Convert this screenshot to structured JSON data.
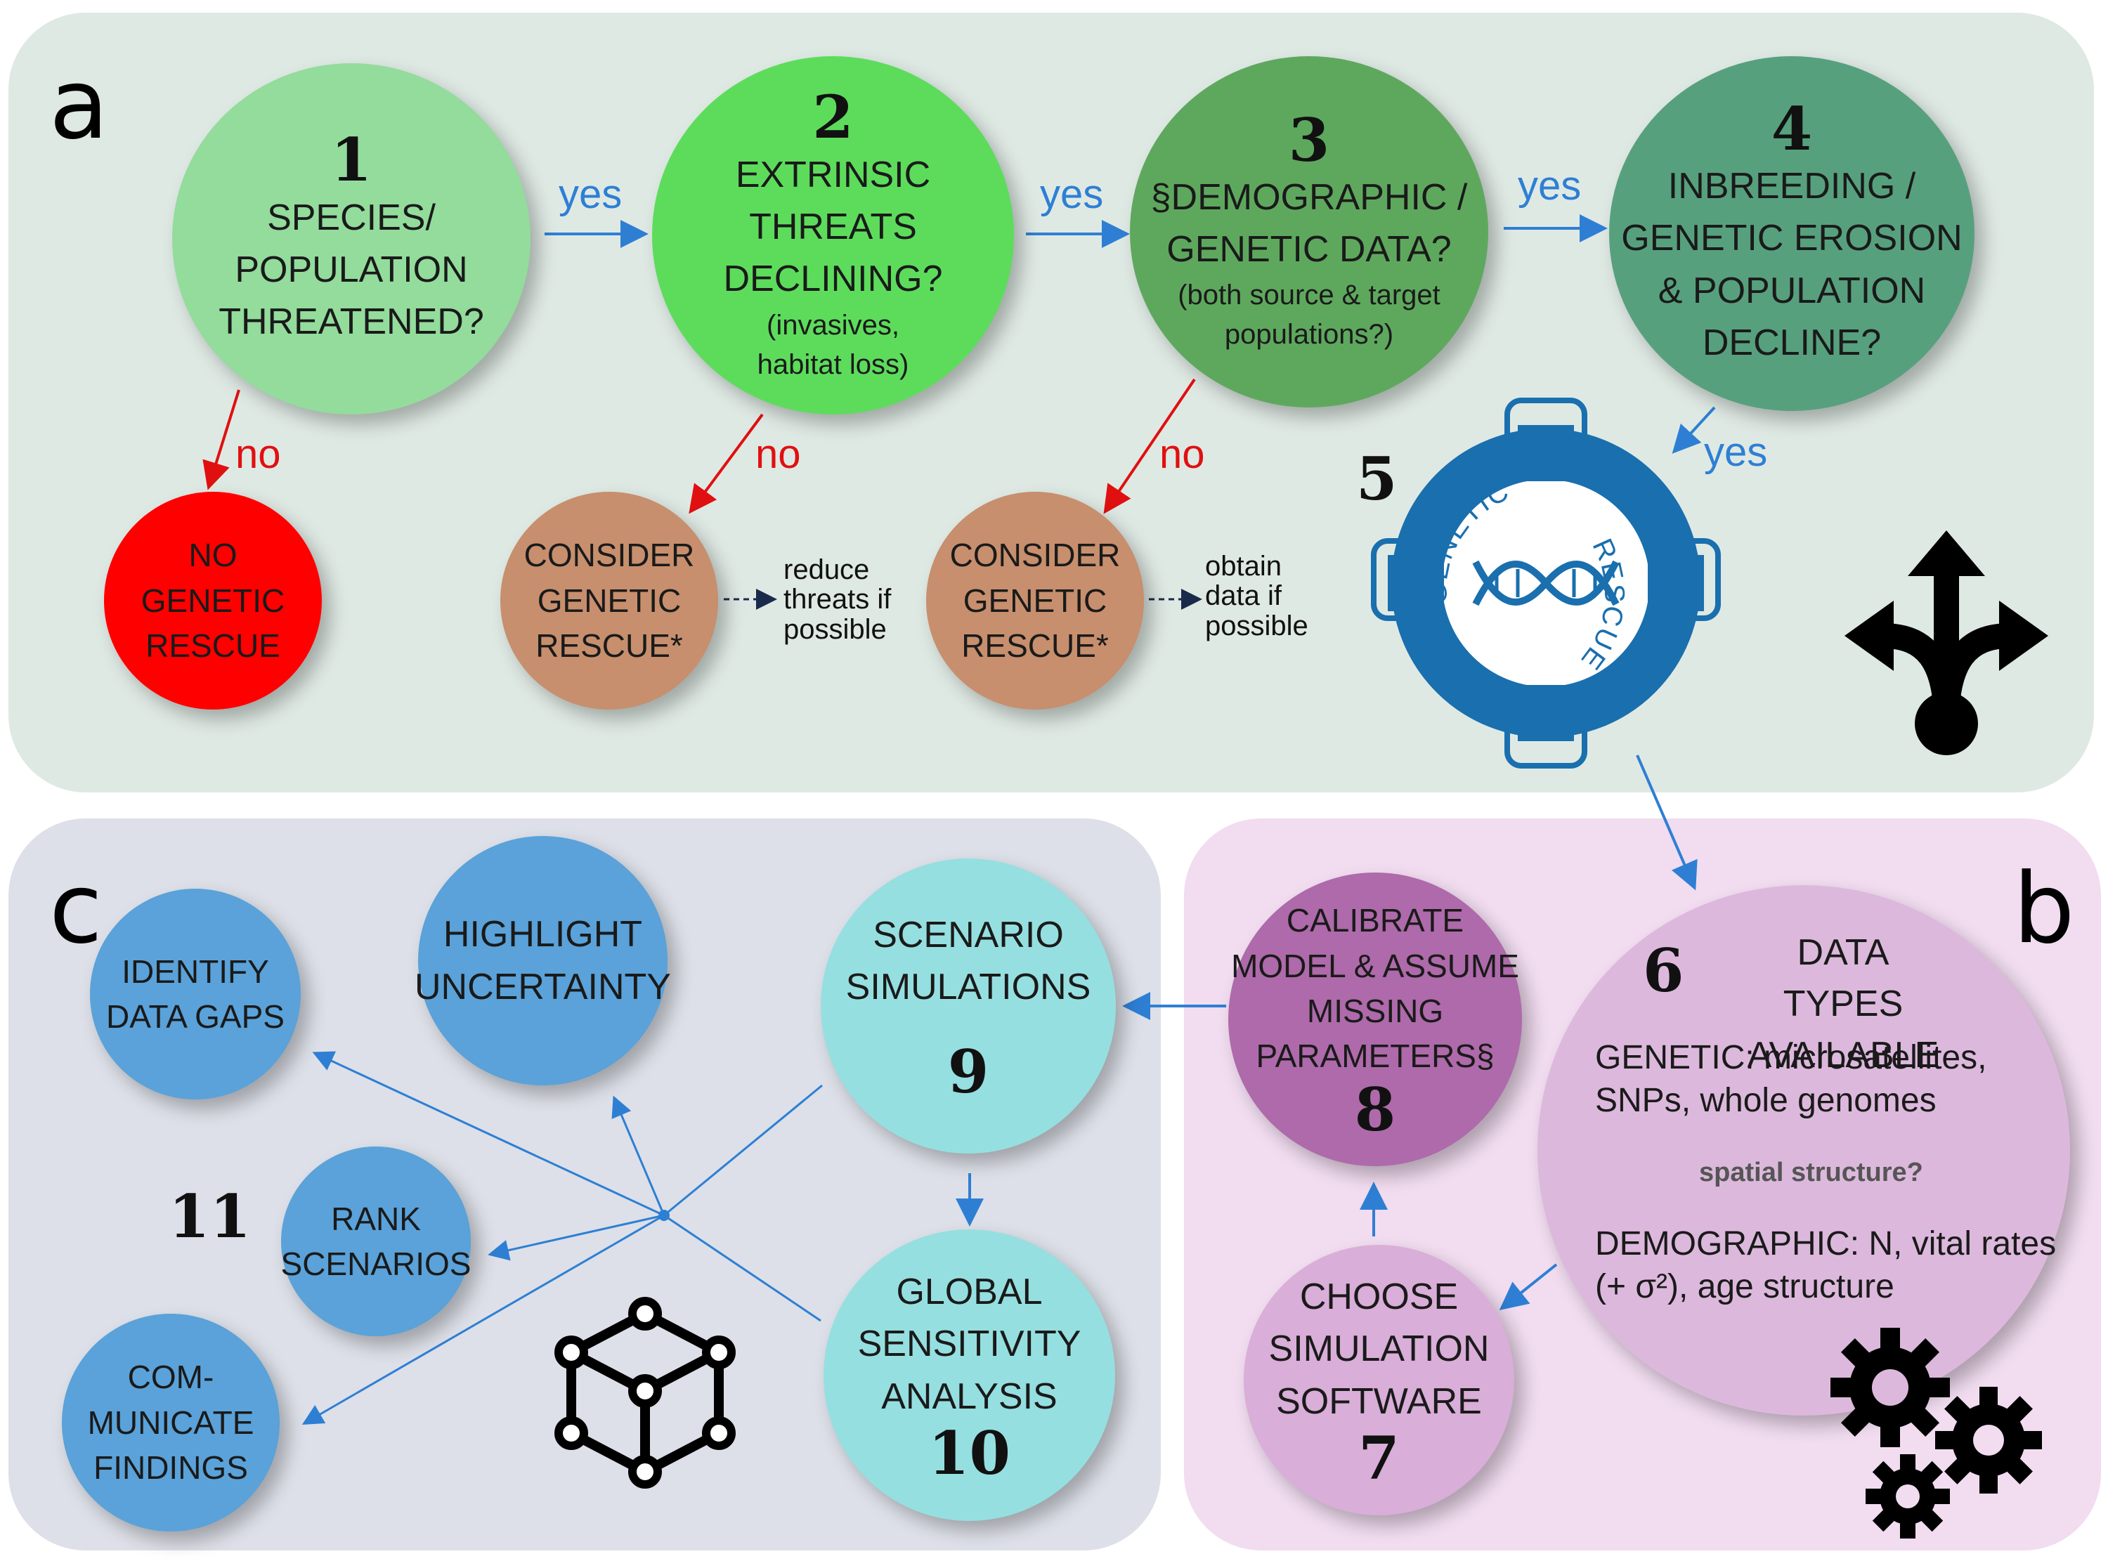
{
  "panels": {
    "a": {
      "letter": "a"
    },
    "b": {
      "letter": "b"
    },
    "c": {
      "letter": "c"
    }
  },
  "steps": {
    "s1": {
      "number": "1",
      "l1": "SPECIES/",
      "l2": "POPULATION",
      "l3": "THREATENED?"
    },
    "s2": {
      "number": "2",
      "l1": "EXTRINSIC",
      "l2": "THREATS",
      "l3": "DECLINING?",
      "sub1": "(invasives,",
      "sub2": "habitat loss)"
    },
    "s3": {
      "number": "3",
      "l1": "§DEMOGRAPHIC /",
      "l2": "GENETIC DATA?",
      "sub1": "(both source & target",
      "sub2": "populations?)"
    },
    "s4": {
      "number": "4",
      "l1": "INBREEDING /",
      "l2": "GENETIC EROSION",
      "l3": "& POPULATION",
      "l4": "DECLINE?"
    },
    "s5": {
      "number": "5",
      "ring_top": "GENETIC",
      "ring_bottom": "RESCUE"
    },
    "s6": {
      "number": "6",
      "title1": "DATA TYPES",
      "title2": "AVAILABLE",
      "genetic1": "GENETIC: microsatellites,",
      "genetic2": "SNPs, whole genomes",
      "spatial": "spatial structure?",
      "demo1": "DEMOGRAPHIC: N, vital rates",
      "demo2": "(+ σ²), age structure"
    },
    "s7": {
      "number": "7",
      "l1": "CHOOSE",
      "l2": "SIMULATION",
      "l3": "SOFTWARE"
    },
    "s8": {
      "number": "8",
      "l1": "CALIBRATE",
      "l2": "MODEL & ASSUME",
      "l3": "MISSING",
      "l4": "PARAMETERS§"
    },
    "s9": {
      "number": "9",
      "l1": "SCENARIO",
      "l2": "SIMULATIONS"
    },
    "s10": {
      "number": "10",
      "l1": "GLOBAL",
      "l2": "SENSITIVITY",
      "l3": "ANALYSIS"
    },
    "s11": {
      "number": "11"
    }
  },
  "outcomes": {
    "no_rescue": {
      "l1": "NO",
      "l2": "GENETIC",
      "l3": "RESCUE"
    },
    "consider_a": {
      "l1": "CONSIDER",
      "l2": "GENETIC",
      "l3": "RESCUE*"
    },
    "consider_b": {
      "l1": "CONSIDER",
      "l2": "GENETIC",
      "l3": "RESCUE*"
    },
    "note_reduce": {
      "l1": "reduce",
      "l2": "threats if",
      "l3": "possible"
    },
    "note_obtain": {
      "l1": "obtain",
      "l2": "data if",
      "l3": "possible"
    }
  },
  "results": {
    "identify": {
      "l1": "IDENTIFY",
      "l2": "DATA GAPS"
    },
    "highlight": {
      "l1": "HIGHLIGHT",
      "l2": "UNCERTAINTY"
    },
    "rank": {
      "l1": "RANK",
      "l2": "SCENARIOS"
    },
    "communicate": {
      "l1": "COM-",
      "l2": "MUNICATE",
      "l3": "FINDINGS"
    }
  },
  "edge_labels": {
    "yes": "yes",
    "no": "no"
  },
  "icons": [
    "split-arrows-icon",
    "life-ring-dna-icon",
    "gears-icon",
    "network-cube-icon"
  ],
  "colors": {
    "step1": "#93dc9c",
    "step2": "#5ddc5c",
    "step3": "#5ea85e",
    "step4": "#57a07e",
    "no_rescue": "#ff0000",
    "consider": "#c78f6d",
    "ring": "#1a6fae",
    "step6": "#dcb9dc",
    "step7": "#d9aed8",
    "step8": "#ae6aaa",
    "step9": "#96dfe0",
    "results": "#5aa2d9",
    "yes": "#2e7fd4",
    "no": "#e01010"
  }
}
